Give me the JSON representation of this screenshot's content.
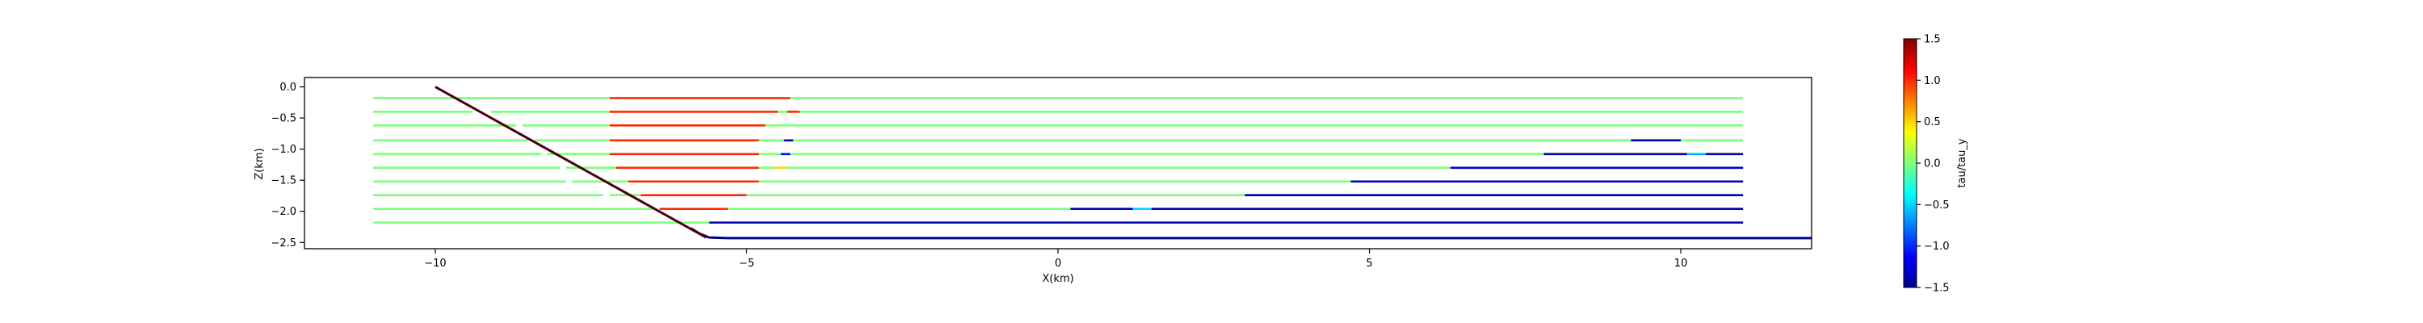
{
  "chart_data": [
    {
      "type": "line",
      "title": "",
      "xlabel": "X(km)",
      "ylabel": "Z(km)",
      "xlim": [
        -12.1,
        12.1
      ],
      "ylim": [
        -2.6,
        0.15
      ],
      "x_ticks": [
        -10,
        -5,
        0,
        5,
        10
      ],
      "x_tick_labels": [
        "−10",
        "−5",
        "0",
        "5",
        "10"
      ],
      "y_ticks": [
        0.0,
        -0.5,
        -1.0,
        -1.5,
        -2.0,
        -2.5
      ],
      "y_tick_labels": [
        "0.0",
        "−0.5",
        "−1.0",
        "−1.5",
        "−2.0",
        "−2.5"
      ],
      "grid": false,
      "fault_line": {
        "color": "#4a0010",
        "points": [
          [
            -10.0,
            0.0
          ],
          [
            -5.65,
            -2.42
          ]
        ]
      },
      "basement": {
        "color": "#00008b",
        "points": [
          [
            -5.9,
            -2.27
          ],
          [
            -5.75,
            -2.36
          ],
          [
            -5.6,
            -2.42
          ],
          [
            -5.3,
            -2.43
          ],
          [
            0,
            -2.43
          ],
          [
            6,
            -2.43
          ],
          [
            12.1,
            -2.43
          ]
        ]
      },
      "value_colors": {
        "-1.5": "#00008f",
        "-1.0": "#0050ff",
        "-0.5": "#00d4ff",
        "0.0": "#7dff7a",
        "0.5": "#ffd800",
        "1.0": "#ff4a00",
        "1.5": "#800000"
      },
      "layers": [
        {
          "z": -0.18,
          "segments": [
            {
              "x": [
                -11.0,
                -9.2
              ],
              "value": 0.0
            },
            {
              "x": [
                -9.5,
                -7.2
              ],
              "value": 0.0
            },
            {
              "x": [
                -7.2,
                -4.3
              ],
              "value": 1.0
            },
            {
              "x": [
                -4.3,
                11.0
              ],
              "value": 0.0
            }
          ]
        },
        {
          "z": -0.4,
          "segments": [
            {
              "x": [
                -11.0,
                -9.4
              ],
              "value": 0.0
            },
            {
              "x": [
                -9.1,
                -7.2
              ],
              "value": 0.0
            },
            {
              "x": [
                -7.2,
                -4.5
              ],
              "value": 1.0
            },
            {
              "x": [
                -4.5,
                -4.3
              ],
              "value": 0.0
            },
            {
              "x": [
                -4.35,
                -4.15
              ],
              "value": 1.0
            },
            {
              "x": [
                -4.15,
                11.0
              ],
              "value": 0.0
            }
          ]
        },
        {
          "z": -0.62,
          "segments": [
            {
              "x": [
                -11.0,
                -8.7
              ],
              "value": 0.0
            },
            {
              "x": [
                -8.6,
                -7.2
              ],
              "value": 0.0
            },
            {
              "x": [
                -7.2,
                -4.7
              ],
              "value": 1.0
            },
            {
              "x": [
                -4.7,
                11.0
              ],
              "value": 0.0
            }
          ]
        },
        {
          "z": -0.86,
          "segments": [
            {
              "x": [
                -11.0,
                -8.5
              ],
              "value": 0.0
            },
            {
              "x": [
                -8.4,
                -7.2
              ],
              "value": 0.0
            },
            {
              "x": [
                -7.2,
                -4.8
              ],
              "value": 1.0
            },
            {
              "x": [
                -4.8,
                -4.4
              ],
              "value": 0.0
            },
            {
              "x": [
                -4.4,
                -4.25
              ],
              "value": -1.3
            },
            {
              "x": [
                -4.25,
                9.2
              ],
              "value": 0.0
            },
            {
              "x": [
                9.2,
                10.0
              ],
              "value": -1.4
            },
            {
              "x": [
                10.0,
                11.0
              ],
              "value": 0.0
            }
          ]
        },
        {
          "z": -1.08,
          "segments": [
            {
              "x": [
                -11.0,
                -8.3
              ],
              "value": 0.0
            },
            {
              "x": [
                -8.2,
                -7.2
              ],
              "value": 0.0
            },
            {
              "x": [
                -7.2,
                -4.8
              ],
              "value": 1.0
            },
            {
              "x": [
                -4.8,
                -4.45
              ],
              "value": 0.0
            },
            {
              "x": [
                -4.45,
                -4.3
              ],
              "value": -1.1
            },
            {
              "x": [
                -4.3,
                7.8
              ],
              "value": 0.0
            },
            {
              "x": [
                7.8,
                10.1
              ],
              "value": -1.4
            },
            {
              "x": [
                10.1,
                10.4
              ],
              "value": -0.6
            },
            {
              "x": [
                10.4,
                11.0
              ],
              "value": -1.4
            }
          ]
        },
        {
          "z": -1.3,
          "segments": [
            {
              "x": [
                -11.0,
                -8.0
              ],
              "value": 0.0
            },
            {
              "x": [
                -7.9,
                -7.1
              ],
              "value": 0.0
            },
            {
              "x": [
                -7.1,
                -4.8
              ],
              "value": 1.0
            },
            {
              "x": [
                -4.8,
                -4.55
              ],
              "value": 0.0
            },
            {
              "x": [
                -4.55,
                -4.35
              ],
              "value": 0.5
            },
            {
              "x": [
                -4.35,
                6.3
              ],
              "value": 0.0
            },
            {
              "x": [
                6.3,
                11.0
              ],
              "value": -1.3
            }
          ]
        },
        {
          "z": -1.52,
          "segments": [
            {
              "x": [
                -11.0,
                -7.9
              ],
              "value": 0.0
            },
            {
              "x": [
                -7.8,
                -6.9
              ],
              "value": 0.0
            },
            {
              "x": [
                -6.9,
                -4.8
              ],
              "value": 1.0
            },
            {
              "x": [
                -4.8,
                4.7
              ],
              "value": 0.0
            },
            {
              "x": [
                4.7,
                11.0
              ],
              "value": -1.4
            }
          ]
        },
        {
          "z": -1.74,
          "segments": [
            {
              "x": [
                -11.0,
                -7.3
              ],
              "value": 0.0
            },
            {
              "x": [
                -7.2,
                -6.7
              ],
              "value": 0.0
            },
            {
              "x": [
                -6.7,
                -5.0
              ],
              "value": 1.0
            },
            {
              "x": [
                -5.0,
                3.0
              ],
              "value": 0.0
            },
            {
              "x": [
                3.0,
                11.0
              ],
              "value": -1.4
            }
          ]
        },
        {
          "z": -1.96,
          "segments": [
            {
              "x": [
                -11.0,
                -6.5
              ],
              "value": 0.0
            },
            {
              "x": [
                -6.4,
                -5.3
              ],
              "value": 1.0
            },
            {
              "x": [
                -5.3,
                0.2
              ],
              "value": 0.0
            },
            {
              "x": [
                0.2,
                1.2
              ],
              "value": -1.4
            },
            {
              "x": [
                1.2,
                1.5
              ],
              "value": -0.5
            },
            {
              "x": [
                1.5,
                11.0
              ],
              "value": -1.4
            }
          ]
        },
        {
          "z": -2.18,
          "segments": [
            {
              "x": [
                -11.0,
                -5.6
              ],
              "value": 0.0
            },
            {
              "x": [
                -5.6,
                11.0
              ],
              "value": -1.4
            }
          ]
        }
      ]
    },
    {
      "type": "heatmap",
      "title": "",
      "label": "tau/tau_y",
      "vmin": -1.5,
      "vmax": 1.5,
      "colormap": "jet",
      "ticks": [
        1.5,
        1.0,
        0.5,
        0.0,
        -0.5,
        -1.0,
        -1.5
      ],
      "tick_labels": [
        "1.5",
        "1.0",
        "0.5",
        "0.0",
        "−0.5",
        "−1.0",
        "−1.5"
      ]
    }
  ]
}
